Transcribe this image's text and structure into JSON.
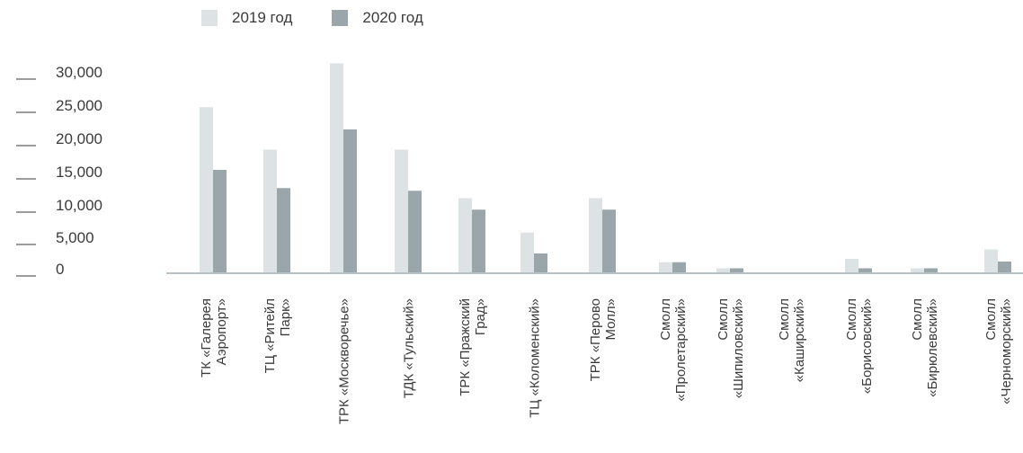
{
  "colors": {
    "series_2019": "#dde2e5",
    "series_2020": "#9aa6aa",
    "baseline": "#b6c2c5",
    "text": "#3a3a3a"
  },
  "legend": [
    {
      "label": "2019 год"
    },
    {
      "label": "2020 год"
    }
  ],
  "chart_data": {
    "type": "bar",
    "ylim": [
      0,
      32000
    ],
    "yticks": [
      "30,000",
      "25,000",
      "20,000",
      "15,000",
      "10,000",
      "5,000",
      "0"
    ],
    "ytick_values": [
      30000,
      25000,
      20000,
      15000,
      10000,
      5000,
      0
    ],
    "categories": [
      [
        "ТК «Галерея",
        "Аэропорт»"
      ],
      [
        "ТЦ «Ритейл",
        "Парк»"
      ],
      [
        "ТРК «Москворечье»"
      ],
      [
        "ТДК «Тульский»"
      ],
      [
        "ТРК «Пражский",
        "Град»"
      ],
      [
        "ТЦ «Коломенский»"
      ],
      [
        "ТРК «Перово",
        "Молл»"
      ],
      [
        "Смолл",
        "«Пролетарский»"
      ],
      [
        "Смолл",
        "«Шипиловский»"
      ],
      [
        "Смолл",
        "«Каширский»"
      ],
      [
        "Смолл",
        "«Борисовский»"
      ],
      [
        "Смолл",
        "«Бирюлевский»"
      ],
      [
        "Смолл",
        "«Черноморский»"
      ]
    ],
    "series": [
      {
        "name": "2019 год",
        "values": [
          24500,
          18200,
          31000,
          18200,
          11000,
          5900,
          11000,
          1500,
          600,
          0,
          2000,
          600,
          3400
        ]
      },
      {
        "name": "2020 год",
        "values": [
          15200,
          12500,
          21200,
          12100,
          9300,
          2800,
          9300,
          1500,
          600,
          0,
          600,
          600,
          1600
        ]
      }
    ]
  }
}
